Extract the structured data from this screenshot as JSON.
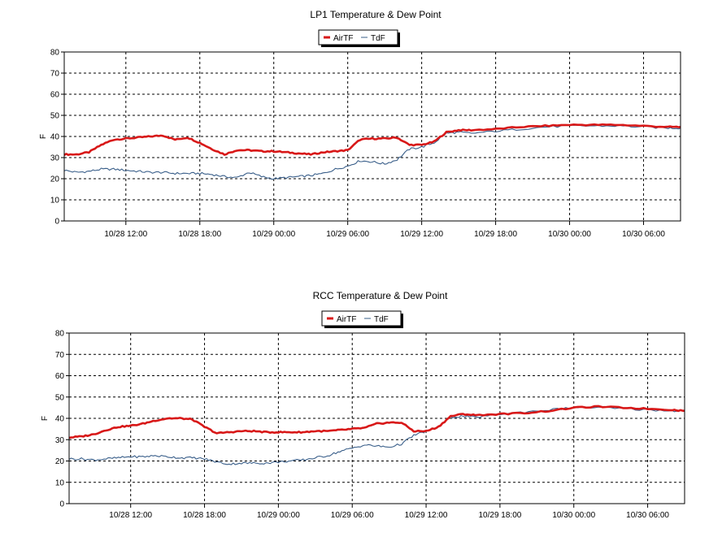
{
  "chart_data": [
    {
      "type": "line",
      "title": "LP1 Temperature & Dew Point",
      "ylabel": "F",
      "xlabel": "",
      "ylim": [
        0,
        80
      ],
      "yticks": [
        "0",
        "10",
        "20",
        "30",
        "40",
        "50",
        "60",
        "70",
        "80"
      ],
      "xlim": [
        "10/28 07:00",
        "10/30 09:00"
      ],
      "xticks": [
        {
          "t": "10/28 12:00",
          "label": "10/28 12:00"
        },
        {
          "t": "10/28 18:00",
          "label": "10/28 18:00"
        },
        {
          "t": "10/29 00:00",
          "label": "10/29 00:00"
        },
        {
          "t": "10/29 06:00",
          "label": "10/29 06:00"
        },
        {
          "t": "10/29 12:00",
          "label": "10/29 12:00"
        },
        {
          "t": "10/29 18:00",
          "label": "10/29 18:00"
        },
        {
          "t": "10/30 00:00",
          "label": "10/30 00:00"
        },
        {
          "t": "10/30 06:00",
          "label": "10/30 06:00"
        }
      ],
      "grid": true,
      "legend": "top-center",
      "series": [
        {
          "name": "AirTF",
          "color": "#d81818",
          "x": [
            "10/28 07:00",
            "10/28 08:00",
            "10/28 09:00",
            "10/28 10:00",
            "10/28 11:00",
            "10/28 12:00",
            "10/28 13:00",
            "10/28 14:00",
            "10/28 15:00",
            "10/28 16:00",
            "10/28 17:00",
            "10/28 18:00",
            "10/28 19:00",
            "10/28 20:00",
            "10/28 21:00",
            "10/28 22:00",
            "10/28 23:00",
            "10/29 00:00",
            "10/29 01:00",
            "10/29 02:00",
            "10/29 03:00",
            "10/29 04:00",
            "10/29 05:00",
            "10/29 06:00",
            "10/29 07:00",
            "10/29 08:00",
            "10/29 09:00",
            "10/29 10:00",
            "10/29 11:00",
            "10/29 12:00",
            "10/29 13:00",
            "10/29 14:00",
            "10/29 15:00",
            "10/29 16:00",
            "10/29 18:00",
            "10/29 20:00",
            "10/29 22:00",
            "10/30 00:00",
            "10/30 02:00",
            "10/30 04:00",
            "10/30 06:00",
            "10/30 08:00",
            "10/30 09:00"
          ],
          "values": [
            31.5,
            31.5,
            32.5,
            36,
            38.5,
            39,
            39.5,
            40,
            40.5,
            38.5,
            39.5,
            37,
            34,
            31.5,
            33.5,
            33.5,
            33,
            33,
            32.5,
            32,
            31.5,
            32.5,
            33,
            33.5,
            38.5,
            39,
            39,
            39.5,
            36,
            36,
            37.5,
            42,
            43,
            43,
            43.5,
            44.5,
            45,
            45.5,
            45.5,
            45.5,
            45,
            44.5,
            44.5
          ]
        },
        {
          "name": "TdF",
          "color": "#3a5f8a",
          "x": [
            "10/28 07:00",
            "10/28 08:00",
            "10/28 09:00",
            "10/28 10:00",
            "10/28 11:00",
            "10/28 12:00",
            "10/28 13:00",
            "10/28 14:00",
            "10/28 15:00",
            "10/28 16:00",
            "10/28 17:00",
            "10/28 18:00",
            "10/28 19:00",
            "10/28 20:00",
            "10/28 21:00",
            "10/28 22:00",
            "10/28 23:00",
            "10/29 00:00",
            "10/29 01:00",
            "10/29 02:00",
            "10/29 03:00",
            "10/29 04:00",
            "10/29 05:00",
            "10/29 06:00",
            "10/29 07:00",
            "10/29 08:00",
            "10/29 09:00",
            "10/29 10:00",
            "10/29 11:00",
            "10/29 12:00",
            "10/29 13:00",
            "10/29 14:00",
            "10/29 15:00",
            "10/29 16:00",
            "10/29 18:00",
            "10/29 20:00",
            "10/29 22:00",
            "10/30 00:00",
            "10/30 02:00",
            "10/30 04:00",
            "10/30 06:00",
            "10/30 08:00",
            "10/30 09:00"
          ],
          "values": [
            24,
            23,
            23.5,
            24.5,
            24.5,
            24,
            23.5,
            23,
            23,
            22.5,
            22.5,
            22.5,
            22,
            21,
            20.5,
            23,
            21,
            20,
            20.5,
            21,
            21.5,
            22.5,
            24.5,
            26,
            28.5,
            28,
            27,
            29,
            34,
            35,
            37,
            41.5,
            42,
            41.5,
            42.5,
            43.5,
            44.5,
            45,
            45,
            45,
            44.5,
            44,
            44
          ]
        }
      ]
    },
    {
      "type": "line",
      "title": "RCC Temperature & Dew Point",
      "ylabel": "F",
      "xlabel": "",
      "ylim": [
        0,
        80
      ],
      "yticks": [
        "0",
        "10",
        "20",
        "30",
        "40",
        "50",
        "60",
        "70",
        "80"
      ],
      "xlim": [
        "10/28 07:00",
        "10/30 09:00"
      ],
      "xticks": [
        {
          "t": "10/28 12:00",
          "label": "10/28 12:00"
        },
        {
          "t": "10/28 18:00",
          "label": "10/28 18:00"
        },
        {
          "t": "10/29 00:00",
          "label": "10/29 00:00"
        },
        {
          "t": "10/29 06:00",
          "label": "10/29 06:00"
        },
        {
          "t": "10/29 12:00",
          "label": "10/29 12:00"
        },
        {
          "t": "10/29 18:00",
          "label": "10/29 18:00"
        },
        {
          "t": "10/30 00:00",
          "label": "10/30 00:00"
        },
        {
          "t": "10/30 06:00",
          "label": "10/30 06:00"
        }
      ],
      "grid": true,
      "legend": "top-center",
      "series": [
        {
          "name": "AirTF",
          "color": "#d81818",
          "x": [
            "10/28 07:00",
            "10/28 08:00",
            "10/28 09:00",
            "10/28 10:00",
            "10/28 11:00",
            "10/28 12:00",
            "10/28 13:00",
            "10/28 14:00",
            "10/28 15:00",
            "10/28 16:00",
            "10/28 17:00",
            "10/28 18:00",
            "10/28 19:00",
            "10/28 20:00",
            "10/28 21:00",
            "10/28 22:00",
            "10/28 23:00",
            "10/29 00:00",
            "10/29 01:00",
            "10/29 02:00",
            "10/29 03:00",
            "10/29 04:00",
            "10/29 05:00",
            "10/29 06:00",
            "10/29 07:00",
            "10/29 08:00",
            "10/29 09:00",
            "10/29 10:00",
            "10/29 11:00",
            "10/29 12:00",
            "10/29 13:00",
            "10/29 14:00",
            "10/29 15:00",
            "10/29 16:00",
            "10/29 18:00",
            "10/29 20:00",
            "10/29 22:00",
            "10/30 00:00",
            "10/30 02:00",
            "10/30 04:00",
            "10/30 06:00",
            "10/30 08:00",
            "10/30 09:00"
          ],
          "values": [
            31,
            31.5,
            32.5,
            34.5,
            36,
            36.5,
            37.5,
            39,
            40,
            40,
            39.5,
            36,
            33,
            33.5,
            34,
            34,
            33.5,
            33.5,
            33.5,
            33.5,
            34,
            34,
            34.5,
            35,
            35.5,
            37.5,
            38,
            38,
            34,
            34,
            36,
            41,
            42,
            41.5,
            42,
            42.5,
            43.5,
            45,
            45.5,
            45,
            44.5,
            44,
            43.5
          ]
        },
        {
          "name": "TdF",
          "color": "#3a5f8a",
          "x": [
            "10/28 07:00",
            "10/28 08:00",
            "10/28 09:00",
            "10/28 10:00",
            "10/28 11:00",
            "10/28 12:00",
            "10/28 13:00",
            "10/28 14:00",
            "10/28 15:00",
            "10/28 16:00",
            "10/28 17:00",
            "10/28 18:00",
            "10/28 19:00",
            "10/28 20:00",
            "10/28 21:00",
            "10/28 22:00",
            "10/28 23:00",
            "10/29 00:00",
            "10/29 01:00",
            "10/29 02:00",
            "10/29 03:00",
            "10/29 04:00",
            "10/29 05:00",
            "10/29 06:00",
            "10/29 07:00",
            "10/29 08:00",
            "10/29 09:00",
            "10/29 10:00",
            "10/29 11:00",
            "10/29 12:00",
            "10/29 13:00",
            "10/29 14:00",
            "10/29 15:00",
            "10/29 16:00",
            "10/29 18:00",
            "10/29 20:00",
            "10/29 22:00",
            "10/30 00:00",
            "10/30 02:00",
            "10/30 04:00",
            "10/30 06:00",
            "10/30 08:00",
            "10/30 09:00"
          ],
          "values": [
            21,
            21,
            20.5,
            21,
            21.5,
            22,
            22,
            22.5,
            22,
            21.5,
            21.5,
            21,
            19.5,
            18.5,
            19,
            19,
            19,
            19.5,
            20,
            20.5,
            21.5,
            22.5,
            24.5,
            26,
            27.5,
            27,
            26.5,
            28,
            32,
            34,
            36,
            40.5,
            41,
            40.5,
            42,
            43,
            44,
            45,
            45,
            44.5,
            44,
            43.5,
            43.5
          ]
        }
      ]
    }
  ]
}
